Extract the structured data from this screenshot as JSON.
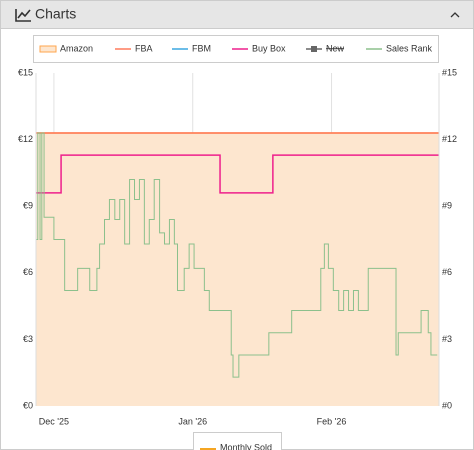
{
  "panel_title": "Charts",
  "chart_data": {
    "type": "line",
    "xlim": [
      -4,
      86
    ],
    "xticks": [
      {
        "value": 0,
        "label": "Dec '25"
      },
      {
        "value": 31,
        "label": "Jan '26"
      },
      {
        "value": 62,
        "label": "Feb '26"
      }
    ],
    "ylim": [
      0,
      15
    ],
    "yticks": [
      {
        "value": 0,
        "label": "€0"
      },
      {
        "value": 3,
        "label": "€3"
      },
      {
        "value": 6,
        "label": "€6"
      },
      {
        "value": 9,
        "label": "€9"
      },
      {
        "value": 12,
        "label": "€12"
      },
      {
        "value": 15,
        "label": "€15"
      }
    ],
    "y2lim": [
      0,
      15
    ],
    "y2ticks": [
      {
        "value": 0,
        "label": "#0"
      },
      {
        "value": 3,
        "label": "#3"
      },
      {
        "value": 6,
        "label": "#6"
      },
      {
        "value": 9,
        "label": "#9"
      },
      {
        "value": 12,
        "label": "#12"
      },
      {
        "value": 15,
        "label": "#15"
      }
    ],
    "grid": "x",
    "step": true,
    "series": [
      {
        "name": "Amazon",
        "color": "#ffa64d",
        "fill": "#fde6cf",
        "x": [
          -4,
          86
        ],
        "values": [
          12.3,
          12.3
        ]
      },
      {
        "name": "FBA",
        "color": "#ff7a5c",
        "x": [
          -4,
          86
        ],
        "values": [
          12.3,
          12.3
        ]
      },
      {
        "name": "FBM",
        "color": "#3aa7e0",
        "x": [],
        "values": []
      },
      {
        "name": "Buy Box",
        "color": "#ee1f8c",
        "x": [
          -4,
          1.6,
          37.1,
          48.9,
          86
        ],
        "values": [
          9.6,
          11.3,
          9.6,
          11.3,
          11.3
        ]
      },
      {
        "name": "New",
        "color": "#666666",
        "struck": true,
        "x": [],
        "values": []
      },
      {
        "name": "Sales Rank",
        "color": "#8cc08c",
        "axis": "y2",
        "x": [
          -4,
          -3.6,
          -3.1,
          -2.7,
          -2.2,
          0,
          1.3,
          2.4,
          5.3,
          8,
          9.6,
          10.2,
          11.3,
          12.4,
          13.6,
          14.7,
          15.8,
          16.9,
          18,
          19.1,
          20.2,
          21.3,
          22.4,
          23.6,
          24.7,
          25.8,
          26.9,
          27.6,
          29.1,
          30.2,
          31.3,
          33.6,
          34.7,
          39.6,
          40,
          41.3,
          48,
          53.1,
          59.6,
          60.4,
          61.3,
          62.4,
          63.6,
          64.7,
          65.8,
          66.9,
          68,
          70.2,
          76.4,
          76.9,
          82,
          83.6,
          84.2,
          85.6
        ],
        "values": [
          7.5,
          12.3,
          7.5,
          12.3,
          8.5,
          7.5,
          7.5,
          5.2,
          6.2,
          5.2,
          6.2,
          7.3,
          8.4,
          9.3,
          8.4,
          9.3,
          7.3,
          10.2,
          9.3,
          10.2,
          7.3,
          8.4,
          10.2,
          7.8,
          7.3,
          8.4,
          7.3,
          5.2,
          6.2,
          7.3,
          6.2,
          5.2,
          4.3,
          2.3,
          1.3,
          2.3,
          3.3,
          4.3,
          6.2,
          7.3,
          6.2,
          5.2,
          4.3,
          5.2,
          4.3,
          5.2,
          4.3,
          6.2,
          2.3,
          3.3,
          4.3,
          3.3,
          2.3,
          2.3
        ]
      }
    ],
    "bottom_legend": {
      "name": "Monthly Sold",
      "color": "#f5a623"
    }
  }
}
